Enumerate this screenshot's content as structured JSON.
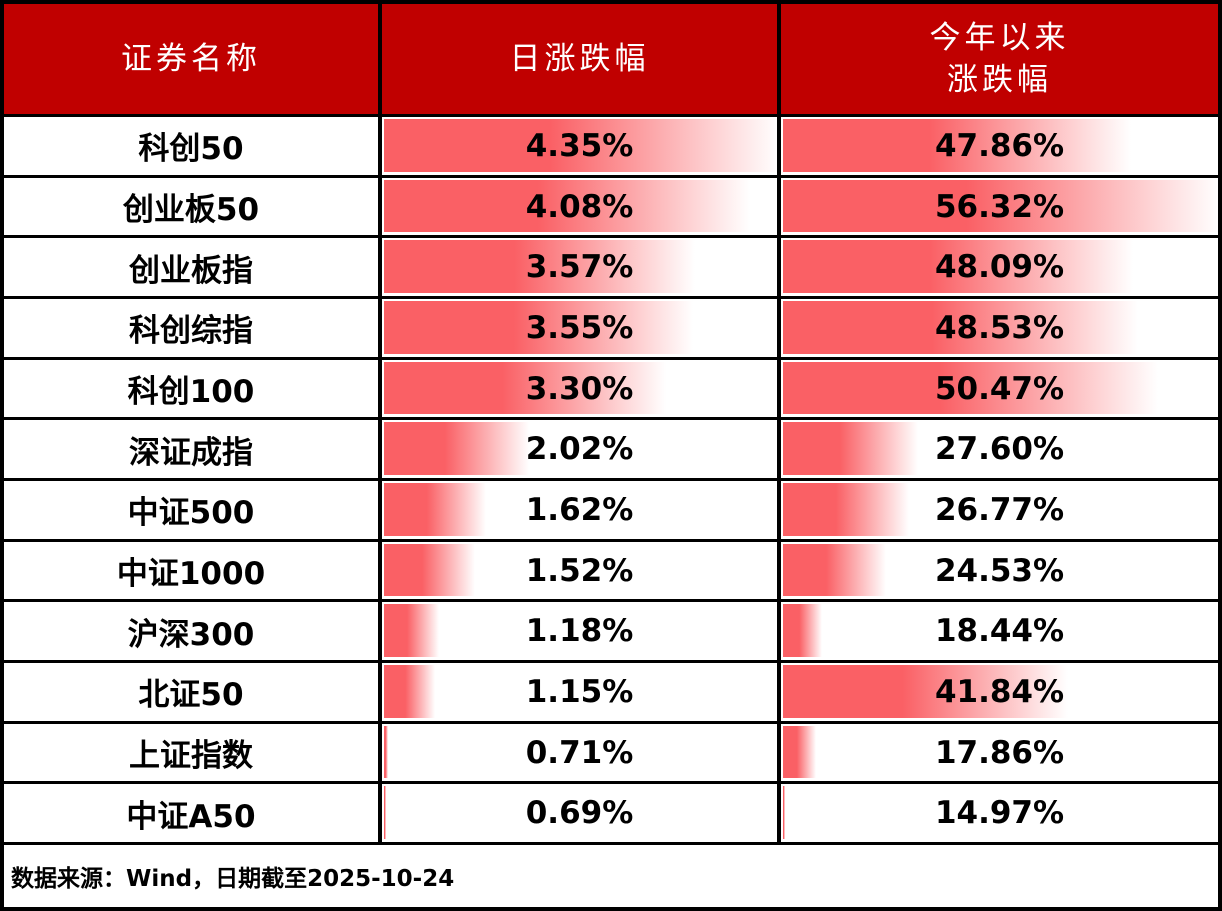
{
  "colors": {
    "header_bg": "#c00000",
    "bar": "#fa6065",
    "border": "#000000",
    "header_text": "#ffffff",
    "body_text": "#000000"
  },
  "header": {
    "columns": [
      {
        "label": "证券名称"
      },
      {
        "label": "日涨跌幅"
      },
      {
        "label": "今年以来",
        "label2": "涨跌幅"
      }
    ]
  },
  "footer": {
    "source_note": "数据来源：Wind，日期截至2025-10-24"
  },
  "chart_data": {
    "type": "table",
    "title": "",
    "columns": [
      "证券名称",
      "日涨跌幅",
      "今年以来涨跌幅"
    ],
    "categories": [
      "科创50",
      "创业板50",
      "创业板指",
      "科创综指",
      "科创100",
      "深证成指",
      "中证500",
      "中证1000",
      "沪深300",
      "北证50",
      "上证指数",
      "中证A50"
    ],
    "series": [
      {
        "name": "日涨跌幅",
        "values": [
          4.35,
          4.08,
          3.57,
          3.55,
          3.3,
          2.02,
          1.62,
          1.52,
          1.18,
          1.15,
          0.71,
          0.69
        ],
        "display": [
          "4.35%",
          "4.08%",
          "3.57%",
          "3.55%",
          "3.30%",
          "2.02%",
          "1.62%",
          "1.52%",
          "1.18%",
          "1.15%",
          "0.71%",
          "0.69%"
        ]
      },
      {
        "name": "今年以来涨跌幅",
        "values": [
          47.86,
          56.32,
          48.09,
          48.53,
          50.47,
          27.6,
          26.77,
          24.53,
          18.44,
          41.84,
          17.86,
          14.97
        ],
        "display": [
          "47.86%",
          "56.32%",
          "48.09%",
          "48.53%",
          "50.47%",
          "27.60%",
          "26.77%",
          "24.53%",
          "18.44%",
          "41.84%",
          "17.86%",
          "14.97%"
        ]
      }
    ],
    "bar_style": "gradient red data bars, length scaled min-max within each column",
    "legend_position": "none",
    "grid": "black cell borders",
    "source_note": "数据来源：Wind，日期截至2025-10-24"
  }
}
